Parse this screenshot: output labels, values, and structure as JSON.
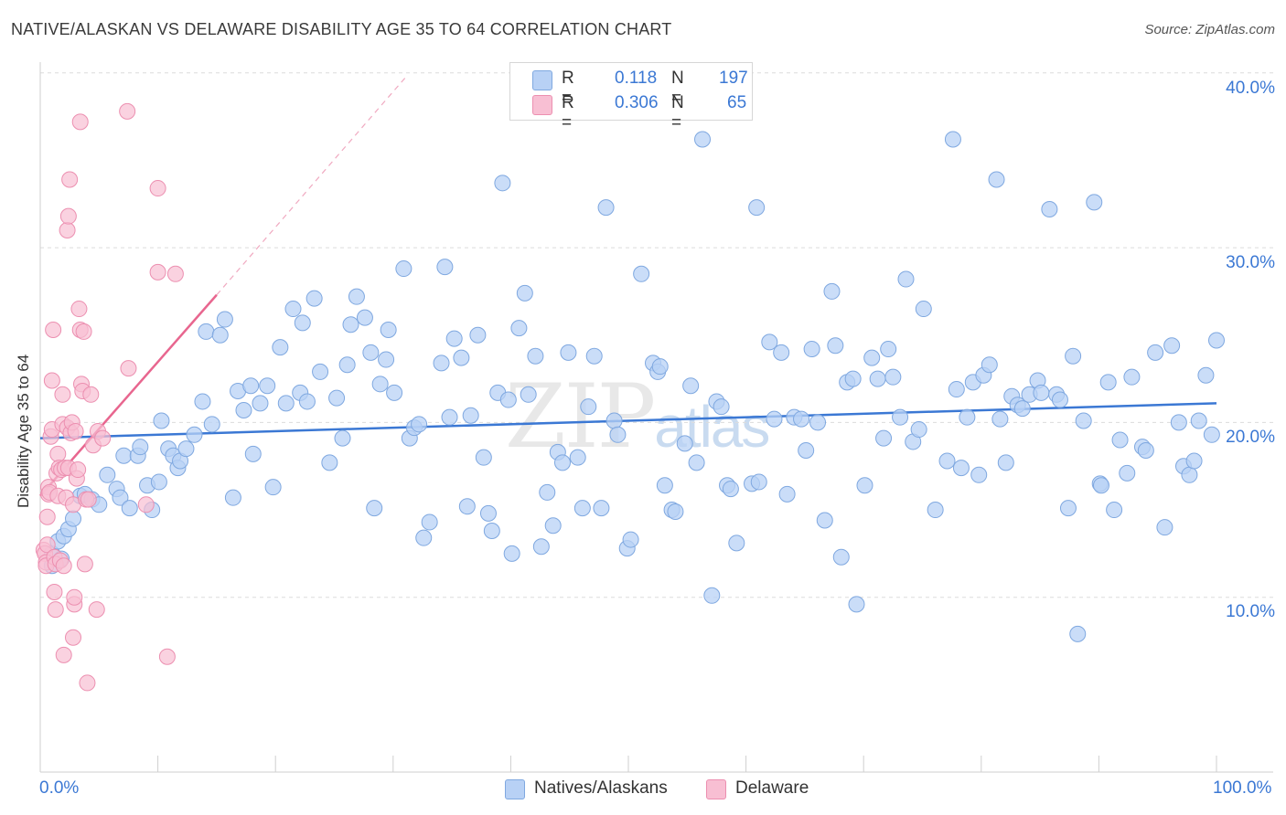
{
  "title": "NATIVE/ALASKAN VS DELAWARE DISABILITY AGE 35 TO 64 CORRELATION CHART",
  "source": "Source: ZipAtlas.com",
  "watermark": {
    "zip": "ZIP",
    "atlas": "atlas"
  },
  "legend": {
    "rows": [
      {
        "r_key": "R =",
        "r_val": "0.118",
        "n_key": "N =",
        "n_val": "197",
        "color": "#b8d1f5"
      },
      {
        "r_key": "R =",
        "r_val": "0.306",
        "n_key": "N =",
        "n_val": "65",
        "color": "#f8bfd3"
      }
    ]
  },
  "bottom_legend": {
    "series1": "Natives/Alaskans",
    "series2": "Delaware"
  },
  "axes": {
    "ylabel": "Disability Age 35 to 64",
    "y_ticks": [
      "40.0%",
      "30.0%",
      "20.0%",
      "10.0%"
    ],
    "x_tick_left": "0.0%",
    "x_tick_right": "100.0%"
  },
  "chart_data": {
    "type": "scatter",
    "title": "NATIVE/ALASKAN VS DELAWARE DISABILITY AGE 35 TO 64 CORRELATION CHART",
    "xlabel": "",
    "ylabel": "Disability Age 35 to 64",
    "xlim": [
      0,
      100
    ],
    "ylim": [
      0,
      42
    ],
    "grid": "horizontal dashed",
    "legend_position": "top-center",
    "colors": {
      "native": "#3b78d4",
      "native_fill": "#b8d1f5",
      "delaware": "#e8668f",
      "delaware_fill": "#f8bfd3"
    },
    "series": [
      {
        "name": "Natives/Alaskans",
        "r": 0.118,
        "n": 197,
        "trend": {
          "x": [
            0,
            100
          ],
          "y": [
            19.1,
            21.1
          ]
        },
        "points": [
          [
            1,
            12.5
          ],
          [
            1,
            11.8
          ],
          [
            1.5,
            13.2
          ],
          [
            1.8,
            12.2
          ],
          [
            2,
            13.5
          ],
          [
            2.4,
            13.9
          ],
          [
            2.8,
            14.5
          ],
          [
            3.4,
            15.8
          ],
          [
            3.8,
            15.9
          ],
          [
            4.4,
            15.6
          ],
          [
            5,
            15.3
          ],
          [
            5.7,
            17.0
          ],
          [
            6.5,
            16.2
          ],
          [
            6.8,
            15.7
          ],
          [
            7.1,
            18.1
          ],
          [
            7.6,
            15.1
          ],
          [
            8.3,
            18.1
          ],
          [
            8.5,
            18.6
          ],
          [
            9.1,
            16.4
          ],
          [
            9.5,
            15.0
          ],
          [
            10.1,
            16.6
          ],
          [
            10.3,
            20.1
          ],
          [
            10.9,
            18.5
          ],
          [
            11.3,
            18.1
          ],
          [
            11.7,
            17.4
          ],
          [
            11.9,
            17.8
          ],
          [
            12.4,
            18.5
          ],
          [
            13.1,
            19.3
          ],
          [
            13.8,
            21.2
          ],
          [
            14.1,
            25.2
          ],
          [
            14.6,
            19.9
          ],
          [
            15.3,
            25.0
          ],
          [
            15.7,
            25.9
          ],
          [
            16.4,
            15.7
          ],
          [
            16.8,
            21.8
          ],
          [
            17.3,
            20.7
          ],
          [
            17.9,
            22.1
          ],
          [
            18.1,
            18.2
          ],
          [
            18.7,
            21.1
          ],
          [
            19.3,
            22.1
          ],
          [
            19.8,
            16.3
          ],
          [
            20.4,
            24.3
          ],
          [
            20.9,
            21.1
          ],
          [
            21.5,
            26.5
          ],
          [
            22.1,
            21.7
          ],
          [
            22.3,
            25.7
          ],
          [
            22.7,
            21.2
          ],
          [
            23.3,
            27.1
          ],
          [
            23.8,
            22.9
          ],
          [
            24.6,
            17.7
          ],
          [
            25.2,
            21.4
          ],
          [
            25.7,
            19.1
          ],
          [
            26.1,
            23.3
          ],
          [
            26.4,
            25.6
          ],
          [
            26.9,
            27.2
          ],
          [
            27.6,
            26.0
          ],
          [
            28.1,
            24.0
          ],
          [
            28.4,
            15.1
          ],
          [
            28.9,
            22.2
          ],
          [
            29.4,
            23.6
          ],
          [
            29.6,
            25.3
          ],
          [
            30.1,
            21.7
          ],
          [
            30.9,
            28.8
          ],
          [
            31.4,
            19.1
          ],
          [
            31.8,
            19.7
          ],
          [
            32.2,
            19.9
          ],
          [
            32.6,
            13.4
          ],
          [
            33.1,
            14.3
          ],
          [
            34.1,
            23.4
          ],
          [
            34.4,
            28.9
          ],
          [
            34.8,
            20.3
          ],
          [
            35.2,
            24.8
          ],
          [
            35.8,
            23.7
          ],
          [
            36.3,
            15.2
          ],
          [
            36.6,
            20.4
          ],
          [
            37.2,
            25.0
          ],
          [
            37.7,
            18.0
          ],
          [
            38.1,
            14.8
          ],
          [
            38.4,
            13.8
          ],
          [
            38.9,
            21.7
          ],
          [
            39.3,
            33.7
          ],
          [
            39.8,
            21.3
          ],
          [
            40.1,
            12.5
          ],
          [
            40.7,
            25.4
          ],
          [
            41.2,
            27.4
          ],
          [
            41.5,
            21.6
          ],
          [
            42.1,
            23.8
          ],
          [
            42.6,
            12.9
          ],
          [
            43.1,
            16.0
          ],
          [
            43.6,
            14.1
          ],
          [
            44,
            18.3
          ],
          [
            44.4,
            17.7
          ],
          [
            44.9,
            24.0
          ],
          [
            45.7,
            18.0
          ],
          [
            46.1,
            15.1
          ],
          [
            46.6,
            20.9
          ],
          [
            47.1,
            23.8
          ],
          [
            47.7,
            15.1
          ],
          [
            48.1,
            32.3
          ],
          [
            48.8,
            20.1
          ],
          [
            49.1,
            19.3
          ],
          [
            49.9,
            12.8
          ],
          [
            50.2,
            13.3
          ],
          [
            51.1,
            28.5
          ],
          [
            52.1,
            23.4
          ],
          [
            52.5,
            22.9
          ],
          [
            52.7,
            23.2
          ],
          [
            53.1,
            16.4
          ],
          [
            53.7,
            15.0
          ],
          [
            54,
            14.9
          ],
          [
            54.8,
            18.8
          ],
          [
            55.3,
            22.1
          ],
          [
            55.8,
            17.7
          ],
          [
            56.3,
            36.2
          ],
          [
            57.1,
            10.1
          ],
          [
            57.5,
            21.2
          ],
          [
            57.9,
            20.9
          ],
          [
            58.4,
            16.4
          ],
          [
            58.7,
            16.2
          ],
          [
            59.2,
            13.1
          ],
          [
            60.5,
            16.5
          ],
          [
            60.9,
            32.3
          ],
          [
            61.1,
            16.6
          ],
          [
            62,
            24.6
          ],
          [
            62.4,
            20.2
          ],
          [
            63,
            24.0
          ],
          [
            63.5,
            15.9
          ],
          [
            64.1,
            20.3
          ],
          [
            64.7,
            20.2
          ],
          [
            65.1,
            18.4
          ],
          [
            65.6,
            24.2
          ],
          [
            66.1,
            20.0
          ],
          [
            66.7,
            14.4
          ],
          [
            67.3,
            27.5
          ],
          [
            67.6,
            24.4
          ],
          [
            68.1,
            12.3
          ],
          [
            68.6,
            22.3
          ],
          [
            69.1,
            22.5
          ],
          [
            69.4,
            9.6
          ],
          [
            70.1,
            16.4
          ],
          [
            70.7,
            23.7
          ],
          [
            71.2,
            22.5
          ],
          [
            71.7,
            19.1
          ],
          [
            72.1,
            24.2
          ],
          [
            72.5,
            22.6
          ],
          [
            73.1,
            20.3
          ],
          [
            73.6,
            28.2
          ],
          [
            74.2,
            18.9
          ],
          [
            74.7,
            19.6
          ],
          [
            75.1,
            26.5
          ],
          [
            76.1,
            15.0
          ],
          [
            77.1,
            17.8
          ],
          [
            77.6,
            36.2
          ],
          [
            77.9,
            21.9
          ],
          [
            78.3,
            17.4
          ],
          [
            78.8,
            20.3
          ],
          [
            79.3,
            22.3
          ],
          [
            79.8,
            17.0
          ],
          [
            80.2,
            22.7
          ],
          [
            80.7,
            23.3
          ],
          [
            81.3,
            33.9
          ],
          [
            81.6,
            20.2
          ],
          [
            82.1,
            17.7
          ],
          [
            82.6,
            21.5
          ],
          [
            83.1,
            21.0
          ],
          [
            83.5,
            20.8
          ],
          [
            84.1,
            21.6
          ],
          [
            84.8,
            22.4
          ],
          [
            85.1,
            21.7
          ],
          [
            85.8,
            32.2
          ],
          [
            86.4,
            21.6
          ],
          [
            86.7,
            21.3
          ],
          [
            87.4,
            15.1
          ],
          [
            87.8,
            23.8
          ],
          [
            88.2,
            7.9
          ],
          [
            88.7,
            20.1
          ],
          [
            89.6,
            32.6
          ],
          [
            90.1,
            16.5
          ],
          [
            90.2,
            16.4
          ],
          [
            90.8,
            22.3
          ],
          [
            91.3,
            15.0
          ],
          [
            91.8,
            19.0
          ],
          [
            92.4,
            17.1
          ],
          [
            92.8,
            22.6
          ],
          [
            93.7,
            18.6
          ],
          [
            94,
            18.4
          ],
          [
            94.8,
            24.0
          ],
          [
            95.6,
            14.0
          ],
          [
            96.2,
            24.4
          ],
          [
            96.8,
            20.0
          ],
          [
            97.2,
            17.5
          ],
          [
            97.7,
            17.0
          ],
          [
            98.1,
            17.8
          ],
          [
            98.5,
            20.1
          ],
          [
            99.1,
            22.7
          ],
          [
            99.6,
            19.3
          ],
          [
            100,
            24.7
          ]
        ]
      },
      {
        "name": "Delaware",
        "r": 0.306,
        "n": 65,
        "trend": {
          "x": [
            0,
            15
          ],
          "y": [
            15.8,
            27.3
          ],
          "extension": {
            "x": [
              15,
              31
            ],
            "y": [
              27.3,
              39.7
            ]
          }
        },
        "points": [
          [
            0.3,
            12.7
          ],
          [
            0.4,
            12.5
          ],
          [
            0.5,
            12.0
          ],
          [
            0.5,
            11.8
          ],
          [
            0.6,
            13.0
          ],
          [
            0.6,
            14.6
          ],
          [
            0.7,
            16.3
          ],
          [
            0.7,
            15.9
          ],
          [
            0.8,
            16.0
          ],
          [
            0.9,
            19.2
          ],
          [
            1,
            19.6
          ],
          [
            1,
            22.4
          ],
          [
            1.1,
            25.3
          ],
          [
            1.2,
            12.3
          ],
          [
            1.2,
            10.3
          ],
          [
            1.3,
            9.3
          ],
          [
            1.3,
            11.9
          ],
          [
            1.4,
            17.1
          ],
          [
            1.5,
            15.8
          ],
          [
            1.5,
            18.2
          ],
          [
            1.6,
            17.4
          ],
          [
            1.7,
            12.1
          ],
          [
            1.8,
            17.3
          ],
          [
            1.9,
            19.9
          ],
          [
            1.9,
            21.6
          ],
          [
            2,
            6.7
          ],
          [
            2,
            11.8
          ],
          [
            2.1,
            17.4
          ],
          [
            2.2,
            15.7
          ],
          [
            2.3,
            19.7
          ],
          [
            2.3,
            31.0
          ],
          [
            2.4,
            31.8
          ],
          [
            2.4,
            17.4
          ],
          [
            2.5,
            33.9
          ],
          [
            2.6,
            19.4
          ],
          [
            2.7,
            20.0
          ],
          [
            2.8,
            15.3
          ],
          [
            2.8,
            7.7
          ],
          [
            2.9,
            9.6
          ],
          [
            2.9,
            10.0
          ],
          [
            3,
            19.5
          ],
          [
            3.1,
            16.8
          ],
          [
            3.2,
            17.3
          ],
          [
            3.3,
            26.5
          ],
          [
            3.4,
            25.3
          ],
          [
            3.4,
            37.2
          ],
          [
            3.5,
            22.2
          ],
          [
            3.6,
            21.8
          ],
          [
            3.7,
            25.2
          ],
          [
            3.8,
            11.9
          ],
          [
            3.9,
            15.6
          ],
          [
            4,
            5.1
          ],
          [
            4.1,
            15.6
          ],
          [
            4.3,
            21.6
          ],
          [
            4.5,
            18.7
          ],
          [
            4.8,
            9.3
          ],
          [
            4.9,
            19.5
          ],
          [
            5.3,
            19.1
          ],
          [
            7.4,
            37.8
          ],
          [
            7.5,
            23.1
          ],
          [
            9,
            15.3
          ],
          [
            10,
            33.4
          ],
          [
            10,
            28.6
          ],
          [
            10.8,
            6.6
          ],
          [
            11.5,
            28.5
          ]
        ]
      }
    ]
  }
}
